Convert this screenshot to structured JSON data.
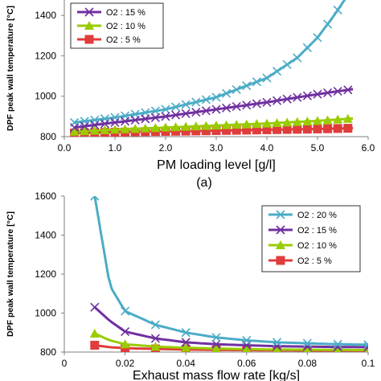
{
  "chart_data": [
    {
      "type": "line",
      "sub_label": "(a)",
      "xlabel": "PM loading level [g/l]",
      "ylabel": "DPF peak wall temperature [°C]",
      "xlim": [
        0,
        6
      ],
      "ylim": [
        800,
        1500
      ],
      "xticks": [
        "0.0",
        "1.0",
        "2.0",
        "3.0",
        "4.0",
        "5.0",
        "6.0"
      ],
      "yticks": [
        "800",
        "1000",
        "1200",
        "1400"
      ],
      "legend_position": "top-left",
      "series": [
        {
          "name": "O2 : 15 %",
          "color": "#7030a0",
          "marker": "x",
          "x": [
            0.2,
            1,
            2,
            3,
            4,
            5,
            5.7
          ],
          "y": [
            845,
            870,
            900,
            935,
            970,
            1010,
            1035
          ],
          "marker_x": [
            0.2,
            0.4,
            0.6,
            0.8,
            1,
            1.2,
            1.4,
            1.6,
            1.8,
            2,
            2.2,
            2.4,
            2.6,
            2.8,
            3,
            3.2,
            3.4,
            3.6,
            3.8,
            4,
            4.2,
            4.4,
            4.6,
            4.8,
            5,
            5.2,
            5.4,
            5.6
          ],
          "marker_y": []
        },
        {
          "name": "O2 : 10 %",
          "color": "#99cc00",
          "marker": "triangle",
          "x": [
            0.2,
            1,
            2,
            3,
            4,
            5,
            5.7
          ],
          "y": [
            825,
            835,
            845,
            855,
            865,
            878,
            890
          ]
        },
        {
          "name": "O2 : 5 %",
          "color": "#e03c3c",
          "marker": "square",
          "x": [
            0.2,
            1,
            2,
            3,
            4,
            5,
            5.7
          ],
          "y": [
            818,
            822,
            826,
            830,
            834,
            838,
            842
          ]
        },
        {
          "name": "",
          "color": "#4bacc6",
          "marker": "x",
          "x": [
            0.2,
            1,
            2,
            3,
            4,
            4.6,
            5,
            5.3,
            5.6
          ],
          "y": [
            870,
            895,
            935,
            995,
            1090,
            1190,
            1290,
            1390,
            1500
          ]
        }
      ]
    },
    {
      "type": "line",
      "sub_label": "",
      "xlabel": "Exhaust mass flow rate [kg/s]",
      "ylabel": "DPF peak wall temperature [°C]",
      "xlim": [
        0,
        0.1
      ],
      "ylim": [
        800,
        1600
      ],
      "xticks": [
        "0",
        "0.02",
        "0.04",
        "0.06",
        "0.08",
        "0.1"
      ],
      "yticks": [
        "800",
        "1000",
        "1200",
        "1400",
        "1600"
      ],
      "legend_position": "top-right",
      "series": [
        {
          "name": "O2 : 20 %",
          "color": "#4bacc6",
          "marker": "x",
          "x": [
            0.01,
            0.015,
            0.02,
            0.03,
            0.04,
            0.05,
            0.06,
            0.07,
            0.08,
            0.09,
            0.1
          ],
          "y": [
            1600,
            1140,
            1010,
            940,
            900,
            875,
            860,
            850,
            845,
            840,
            838
          ]
        },
        {
          "name": "O2 : 15 %",
          "color": "#7030a0",
          "marker": "x",
          "x": [
            0.01,
            0.015,
            0.02,
            0.03,
            0.04,
            0.05,
            0.06,
            0.07,
            0.08,
            0.09,
            0.1
          ],
          "y": [
            1030,
            960,
            905,
            870,
            850,
            840,
            835,
            830,
            828,
            826,
            825
          ]
        },
        {
          "name": "O2 : 10 %",
          "color": "#99cc00",
          "marker": "triangle",
          "x": [
            0.01,
            0.015,
            0.02,
            0.03,
            0.04,
            0.05,
            0.06,
            0.07,
            0.08,
            0.09,
            0.1
          ],
          "y": [
            895,
            860,
            840,
            828,
            822,
            818,
            815,
            813,
            812,
            811,
            810
          ]
        },
        {
          "name": "O2 : 5 %",
          "color": "#e03c3c",
          "marker": "square",
          "x": [
            0.01,
            0.015,
            0.02,
            0.03,
            0.04,
            0.05,
            0.06,
            0.07,
            0.08,
            0.09,
            0.1
          ],
          "y": [
            835,
            825,
            820,
            816,
            813,
            811,
            810,
            809,
            808,
            808,
            807
          ]
        }
      ]
    }
  ]
}
